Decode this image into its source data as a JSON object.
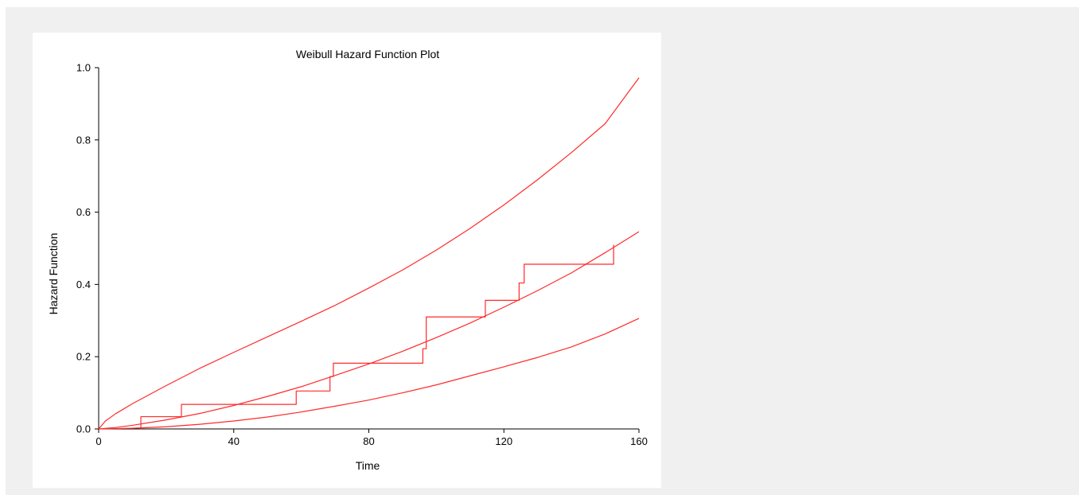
{
  "chart_data": {
    "type": "line",
    "title": "Weibull Hazard Function Plot",
    "xlabel": "Time",
    "ylabel": "Hazard Function",
    "xlim": [
      0,
      160
    ],
    "ylim": [
      0,
      1.0
    ],
    "x_ticks": [
      "0",
      "40",
      "80",
      "120",
      "160"
    ],
    "y_ticks": [
      "0.0",
      "0.2",
      "0.4",
      "0.6",
      "0.8",
      "1.0"
    ],
    "x_tick_values": [
      0,
      40,
      80,
      120,
      160
    ],
    "y_tick_values": [
      0,
      0.2,
      0.4,
      0.6,
      0.8,
      1.0
    ],
    "grid": false,
    "series_color": "#ff2a2a",
    "series": [
      {
        "kind": "curve",
        "x": [
          0,
          2,
          5,
          10,
          20,
          30,
          40,
          50,
          60,
          70,
          80,
          90,
          100,
          110,
          120,
          130,
          140,
          150,
          160
        ],
        "y": [
          0,
          0.022,
          0.042,
          0.07,
          0.12,
          0.168,
          0.212,
          0.255,
          0.298,
          0.342,
          0.39,
          0.44,
          0.495,
          0.555,
          0.62,
          0.69,
          0.765,
          0.845,
          0.972
        ]
      },
      {
        "kind": "curve",
        "x": [
          0,
          5,
          10,
          20,
          30,
          40,
          50,
          60,
          70,
          80,
          90,
          100,
          110,
          120,
          130,
          140,
          150,
          160
        ],
        "y": [
          0,
          0.004,
          0.01,
          0.025,
          0.043,
          0.065,
          0.09,
          0.117,
          0.148,
          0.18,
          0.215,
          0.253,
          0.293,
          0.337,
          0.383,
          0.432,
          0.488,
          0.546
        ]
      },
      {
        "kind": "curve",
        "x": [
          0,
          10,
          20,
          30,
          40,
          50,
          60,
          70,
          80,
          90,
          100,
          110,
          120,
          130,
          140,
          150,
          160
        ],
        "y": [
          0,
          0.002,
          0.006,
          0.013,
          0.022,
          0.033,
          0.047,
          0.063,
          0.08,
          0.1,
          0.122,
          0.147,
          0.172,
          0.198,
          0.227,
          0.263,
          0.306
        ]
      },
      {
        "kind": "step",
        "x": [
          12.5,
          12.5,
          24.5,
          24.5,
          58.5,
          58.5,
          68.5,
          68.5,
          69.5,
          69.5,
          96,
          96,
          97,
          97,
          114.5,
          114.5,
          124.5,
          124.5,
          126,
          126,
          152.5,
          152.5
        ],
        "y": [
          0,
          0.034,
          0.034,
          0.068,
          0.068,
          0.105,
          0.105,
          0.145,
          0.145,
          0.182,
          0.182,
          0.222,
          0.222,
          0.31,
          0.31,
          0.356,
          0.356,
          0.404,
          0.404,
          0.456,
          0.456,
          0.51
        ]
      }
    ]
  }
}
